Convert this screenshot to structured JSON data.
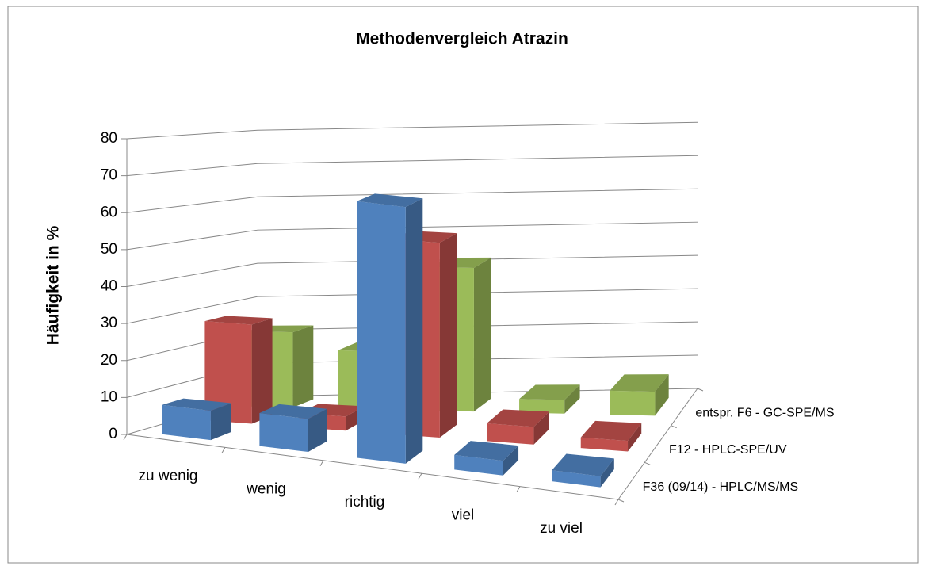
{
  "chart_data": {
    "type": "bar3d",
    "title": "Methodenvergleich Atrazin",
    "y_label": "Häufigkeit in %",
    "categories": [
      "zu wenig",
      "wenig",
      "richtig",
      "viel",
      "zu viel"
    ],
    "series": [
      {
        "name": "F36 (09/14) - HPLC/MS/MS",
        "color": "#4f81bd",
        "values": [
          8,
          9,
          70,
          4,
          3
        ]
      },
      {
        "name": "F12 - HPLC-SPE/UV",
        "color": "#c0504d",
        "values": [
          28,
          4,
          55,
          5,
          3
        ]
      },
      {
        "name": "entspr. F6 - GC-SPE/MS",
        "color": "#9bbb59",
        "values": [
          22,
          17,
          42,
          4,
          7
        ]
      }
    ],
    "ylim": [
      0,
      80
    ],
    "yticks": [
      0,
      10,
      20,
      30,
      40,
      50,
      60,
      70,
      80
    ],
    "grid": true
  }
}
